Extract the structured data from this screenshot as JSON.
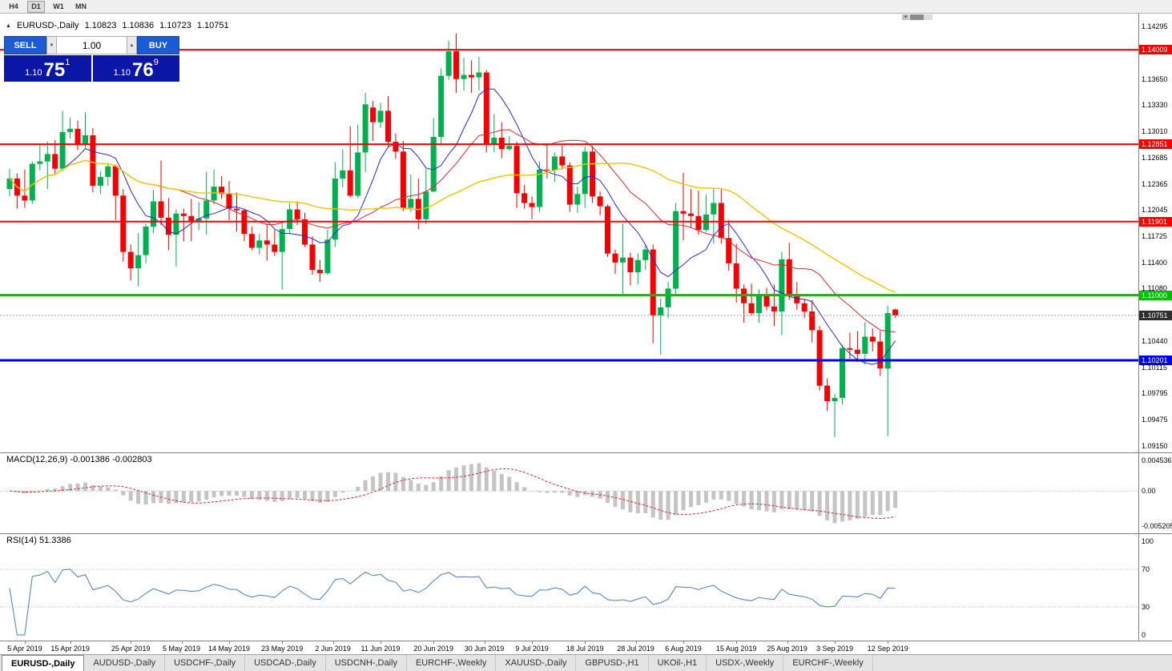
{
  "toolbar": {
    "timeframes": [
      {
        "label": "H4",
        "active": false
      },
      {
        "label": "D1",
        "active": true
      },
      {
        "label": "W1",
        "active": false
      },
      {
        "label": "MN",
        "active": false
      }
    ]
  },
  "chart_header": {
    "symbol": "EURUSD-,Daily",
    "open": "1.10823",
    "high": "1.10836",
    "low": "1.10723",
    "close": "1.10751"
  },
  "one_click": {
    "sell_label": "SELL",
    "buy_label": "BUY",
    "volume": "1.00",
    "sell_price": {
      "prefix": "1.10",
      "big": "75",
      "sup": "1"
    },
    "buy_price": {
      "prefix": "1.10",
      "big": "76",
      "sup": "9"
    }
  },
  "colors": {
    "bull": "#00B050",
    "bear": "#F50000",
    "ma_fast": "#2929C8",
    "ma_mid": "#D22B2B",
    "ma_slow": "#EFC400",
    "macd_hist": "#C4C4C4",
    "macd_signal": "#D22B2B",
    "rsi_line": "#4A7EBB",
    "bid_line": "#999999",
    "bid_label_bg": "#2E2E2E"
  },
  "price_axis": {
    "top_price": 1.14295,
    "bottom_price": 1.0915,
    "ticks": [
      "1.14295",
      "1.13650",
      "1.13330",
      "1.13010",
      "1.12685",
      "1.12365",
      "1.12045",
      "1.11725",
      "1.11400",
      "1.11080",
      "1.10440",
      "1.10115",
      "1.09795",
      "1.09475",
      "1.09150"
    ]
  },
  "chart_data": {
    "type": "candlestick",
    "symbol": "EURUSD",
    "timeframe": "Daily",
    "candles": [
      [
        1.123,
        1.1255,
        1.1221,
        1.1243
      ],
      [
        1.1243,
        1.1249,
        1.1206,
        1.1222
      ],
      [
        1.1222,
        1.1254,
        1.1207,
        1.1216
      ],
      [
        1.1216,
        1.1264,
        1.1212,
        1.1261
      ],
      [
        1.1261,
        1.1285,
        1.1253,
        1.1264
      ],
      [
        1.1264,
        1.1288,
        1.123,
        1.1273
      ],
      [
        1.1273,
        1.129,
        1.1249,
        1.1255
      ],
      [
        1.1255,
        1.1326,
        1.1252,
        1.13
      ],
      [
        1.13,
        1.1318,
        1.1292,
        1.1304
      ],
      [
        1.1304,
        1.1314,
        1.1278,
        1.1284
      ],
      [
        1.1284,
        1.1324,
        1.128,
        1.1296
      ],
      [
        1.1296,
        1.1305,
        1.1226,
        1.1234
      ],
      [
        1.1234,
        1.1252,
        1.1224,
        1.1245
      ],
      [
        1.1245,
        1.1262,
        1.1234,
        1.1258
      ],
      [
        1.1258,
        1.126,
        1.1192,
        1.1222
      ],
      [
        1.1222,
        1.123,
        1.1141,
        1.1153
      ],
      [
        1.1153,
        1.1162,
        1.1118,
        1.1133
      ],
      [
        1.1133,
        1.1176,
        1.1111,
        1.1149
      ],
      [
        1.1149,
        1.1187,
        1.1139,
        1.1184
      ],
      [
        1.1184,
        1.1229,
        1.1176,
        1.1215
      ],
      [
        1.1215,
        1.1265,
        1.1186,
        1.1195
      ],
      [
        1.1195,
        1.1219,
        1.1155,
        1.1174
      ],
      [
        1.1174,
        1.1205,
        1.1135,
        1.12
      ],
      [
        1.12,
        1.1206,
        1.1166,
        1.1197
      ],
      [
        1.1197,
        1.1218,
        1.1166,
        1.1191
      ],
      [
        1.1191,
        1.1214,
        1.118,
        1.1194
      ],
      [
        1.1194,
        1.1251,
        1.1174,
        1.1216
      ],
      [
        1.1216,
        1.1254,
        1.1211,
        1.1233
      ],
      [
        1.1233,
        1.1246,
        1.1218,
        1.1224
      ],
      [
        1.1224,
        1.124,
        1.1192,
        1.1206
      ],
      [
        1.1206,
        1.1226,
        1.1178,
        1.1204
      ],
      [
        1.1204,
        1.1206,
        1.1166,
        1.1175
      ],
      [
        1.1175,
        1.1184,
        1.1155,
        1.1158
      ],
      [
        1.1158,
        1.1175,
        1.115,
        1.1167
      ],
      [
        1.1167,
        1.1188,
        1.1142,
        1.1162
      ],
      [
        1.1162,
        1.118,
        1.1148,
        1.1153
      ],
      [
        1.1153,
        1.1188,
        1.1107,
        1.1181
      ],
      [
        1.1181,
        1.1213,
        1.1175,
        1.1205
      ],
      [
        1.1205,
        1.1215,
        1.1186,
        1.1193
      ],
      [
        1.1193,
        1.1201,
        1.1159,
        1.1162
      ],
      [
        1.1162,
        1.1172,
        1.1125,
        1.1131
      ],
      [
        1.1131,
        1.1143,
        1.1116,
        1.1127
      ],
      [
        1.1127,
        1.118,
        1.1125,
        1.1168
      ],
      [
        1.1168,
        1.1263,
        1.1159,
        1.1243
      ],
      [
        1.1243,
        1.1279,
        1.1232,
        1.1253
      ],
      [
        1.1253,
        1.1307,
        1.122,
        1.1222
      ],
      [
        1.1222,
        1.1309,
        1.1219,
        1.1275
      ],
      [
        1.1275,
        1.1348,
        1.1251,
        1.1334
      ],
      [
        1.133,
        1.1338,
        1.1289,
        1.1312
      ],
      [
        1.1312,
        1.1336,
        1.1305,
        1.1326
      ],
      [
        1.1326,
        1.1344,
        1.1282,
        1.1288
      ],
      [
        1.1288,
        1.1298,
        1.1267,
        1.1276
      ],
      [
        1.1276,
        1.1289,
        1.1203,
        1.1207
      ],
      [
        1.1207,
        1.1248,
        1.1202,
        1.1218
      ],
      [
        1.1218,
        1.1243,
        1.1181,
        1.1193
      ],
      [
        1.1193,
        1.1255,
        1.1187,
        1.1227
      ],
      [
        1.1227,
        1.1317,
        1.1226,
        1.1294
      ],
      [
        1.1294,
        1.1378,
        1.1285,
        1.1369
      ],
      [
        1.1369,
        1.1412,
        1.1364,
        1.1399
      ],
      [
        1.1399,
        1.1421,
        1.1348,
        1.1365
      ],
      [
        1.1365,
        1.1391,
        1.1351,
        1.137
      ],
      [
        1.137,
        1.1388,
        1.1348,
        1.1367
      ],
      [
        1.1367,
        1.1392,
        1.1351,
        1.1373
      ],
      [
        1.1373,
        1.1376,
        1.1275,
        1.1285
      ],
      [
        1.1285,
        1.1322,
        1.1275,
        1.1293
      ],
      [
        1.1293,
        1.1312,
        1.1268,
        1.1279
      ],
      [
        1.1279,
        1.1295,
        1.1277,
        1.1283
      ],
      [
        1.1283,
        1.1288,
        1.1207,
        1.1225
      ],
      [
        1.1225,
        1.1235,
        1.1206,
        1.1213
      ],
      [
        1.1213,
        1.1221,
        1.1193,
        1.1208
      ],
      [
        1.1208,
        1.1264,
        1.1202,
        1.1254
      ],
      [
        1.1254,
        1.1286,
        1.1243,
        1.1253
      ],
      [
        1.1253,
        1.1275,
        1.1239,
        1.127
      ],
      [
        1.127,
        1.1284,
        1.1254,
        1.1259
      ],
      [
        1.1259,
        1.1263,
        1.1202,
        1.1211
      ],
      [
        1.1211,
        1.1233,
        1.1201,
        1.1224
      ],
      [
        1.1224,
        1.1282,
        1.1207,
        1.1276
      ],
      [
        1.1276,
        1.1283,
        1.1213,
        1.1221
      ],
      [
        1.1221,
        1.1227,
        1.1198,
        1.1209
      ],
      [
        1.1209,
        1.1211,
        1.1147,
        1.1151
      ],
      [
        1.1151,
        1.1156,
        1.1126,
        1.114
      ],
      [
        1.114,
        1.1188,
        1.1101,
        1.1146
      ],
      [
        1.1146,
        1.1152,
        1.1112,
        1.1128
      ],
      [
        1.1128,
        1.1151,
        1.1113,
        1.1143
      ],
      [
        1.1143,
        1.1162,
        1.1131,
        1.1156
      ],
      [
        1.1156,
        1.1162,
        1.1041,
        1.1075
      ],
      [
        1.1075,
        1.1096,
        1.1027,
        1.1085
      ],
      [
        1.1085,
        1.1116,
        1.1072,
        1.1108
      ],
      [
        1.1108,
        1.1213,
        1.1101,
        1.1203
      ],
      [
        1.1203,
        1.125,
        1.1167,
        1.12
      ],
      [
        1.12,
        1.123,
        1.1183,
        1.1197
      ],
      [
        1.1197,
        1.1228,
        1.1174,
        1.118
      ],
      [
        1.118,
        1.1223,
        1.1178,
        1.1199
      ],
      [
        1.1199,
        1.1231,
        1.1163,
        1.1213
      ],
      [
        1.1213,
        1.123,
        1.1163,
        1.117
      ],
      [
        1.117,
        1.1192,
        1.113,
        1.1139
      ],
      [
        1.1139,
        1.1163,
        1.1091,
        1.1108
      ],
      [
        1.1108,
        1.1113,
        1.1066,
        1.109
      ],
      [
        1.109,
        1.1114,
        1.1075,
        1.1078
      ],
      [
        1.1078,
        1.1107,
        1.1066,
        1.1099
      ],
      [
        1.1099,
        1.1109,
        1.1081,
        1.1086
      ],
      [
        1.1086,
        1.1113,
        1.1062,
        1.108
      ],
      [
        1.108,
        1.1153,
        1.1051,
        1.1144
      ],
      [
        1.1144,
        1.1164,
        1.1094,
        1.1101
      ],
      [
        1.1101,
        1.1116,
        1.1082,
        1.109
      ],
      [
        1.109,
        1.1095,
        1.1072,
        1.108
      ],
      [
        1.108,
        1.1094,
        1.1042,
        1.1057
      ],
      [
        1.1057,
        1.1062,
        1.0983,
        1.0989
      ],
      [
        1.0989,
        1.0998,
        1.0958,
        1.097
      ],
      [
        1.097,
        1.0979,
        1.0926,
        1.0974
      ],
      [
        1.0974,
        1.1039,
        1.0966,
        1.1035
      ],
      [
        1.1035,
        1.1054,
        1.1022,
        1.1033
      ],
      [
        1.1033,
        1.1056,
        1.1018,
        1.1028
      ],
      [
        1.1028,
        1.1067,
        1.1015,
        1.1049
      ],
      [
        1.1049,
        1.1059,
        1.1031,
        1.1043
      ],
      [
        1.1043,
        1.1056,
        1.1001,
        1.101
      ],
      [
        1.101,
        1.1087,
        1.0927,
        1.1078
      ],
      [
        1.10823,
        1.10836,
        1.10723,
        1.10751
      ]
    ],
    "moving_averages": [
      {
        "name": "fast",
        "period": 8,
        "color": "#2929C8",
        "width": 1
      },
      {
        "name": "mid",
        "period": 20,
        "color": "#D22B2B",
        "width": 1
      },
      {
        "name": "slow",
        "period": 40,
        "color": "#EFC400",
        "width": 1.4
      }
    ],
    "hlines": [
      {
        "label": "1.14009",
        "price": 1.14009,
        "color": "#F50000",
        "width": 2
      },
      {
        "label": "1.12851",
        "price": 1.12851,
        "color": "#F50000",
        "width": 2
      },
      {
        "label": "1.11901",
        "price": 1.11901,
        "color": "#F50000",
        "width": 2
      },
      {
        "label": "1.11000",
        "price": 1.11,
        "color": "#00C000",
        "width": 3
      },
      {
        "label": "1.10201",
        "price": 1.10201,
        "color": "#0000E6",
        "width": 3
      }
    ],
    "bid": {
      "label": "1.10751",
      "price": 1.10751
    },
    "time_labels": [
      {
        "t": "5 Apr 2019",
        "i": 2
      },
      {
        "t": "15 Apr 2019",
        "i": 8
      },
      {
        "t": "25 Apr 2019",
        "i": 16
      },
      {
        "t": "5 May 2019",
        "i": 22.7
      },
      {
        "t": "14 May 2019",
        "i": 29
      },
      {
        "t": "23 May 2019",
        "i": 36
      },
      {
        "t": "2 Jun 2019",
        "i": 42.7
      },
      {
        "t": "11 Jun 2019",
        "i": 49
      },
      {
        "t": "20 Jun 2019",
        "i": 56
      },
      {
        "t": "30 Jun 2019",
        "i": 62.7
      },
      {
        "t": "9 Jul 2019",
        "i": 69
      },
      {
        "t": "18 Jul 2019",
        "i": 76
      },
      {
        "t": "28 Jul 2019",
        "i": 82.7
      },
      {
        "t": "6 Aug 2019",
        "i": 89
      },
      {
        "t": "15 Aug 2019",
        "i": 96
      },
      {
        "t": "25 Aug 2019",
        "i": 102.7
      },
      {
        "t": "3 Sep 2019",
        "i": 109
      },
      {
        "t": "12 Sep 2019",
        "i": 116
      }
    ],
    "macd": {
      "header": "MACD(12,26,9) -0.001386 -0.002803",
      "fast": 12,
      "slow": 26,
      "signal": 9,
      "value": "-0.001386",
      "signal_value": "-0.002803",
      "scale": {
        "top": 0.004536,
        "bottom": -0.005205
      },
      "scale_labels": {
        "top": "0.004536",
        "mid": "0.00",
        "bottom": "-0.005205"
      }
    },
    "rsi": {
      "header": "RSI(14) 51.3386",
      "period": 14,
      "value": "51.3386",
      "upper": 70,
      "lower": 30,
      "levels": {
        "top": "100",
        "upper": "70",
        "lower": "30",
        "bottom": "0"
      }
    }
  },
  "tabs": {
    "items": [
      {
        "label": "EURUSD-,Daily",
        "active": true
      },
      {
        "label": "AUDUSD-,Daily",
        "active": false
      },
      {
        "label": "USDCHF-,Daily",
        "active": false
      },
      {
        "label": "USDCAD-,Daily",
        "active": false
      },
      {
        "label": "USDCNH-,Daily",
        "active": false
      },
      {
        "label": "EURCHF-,Weekly",
        "active": false
      },
      {
        "label": "XAUUSD-,Daily",
        "active": false
      },
      {
        "label": "GBPUSD-,H1",
        "active": false
      },
      {
        "label": "UKOil-,H1",
        "active": false
      },
      {
        "label": "USDX-,Weekly",
        "active": false
      },
      {
        "label": "EURCHF-,Weekly",
        "active": false
      }
    ]
  }
}
